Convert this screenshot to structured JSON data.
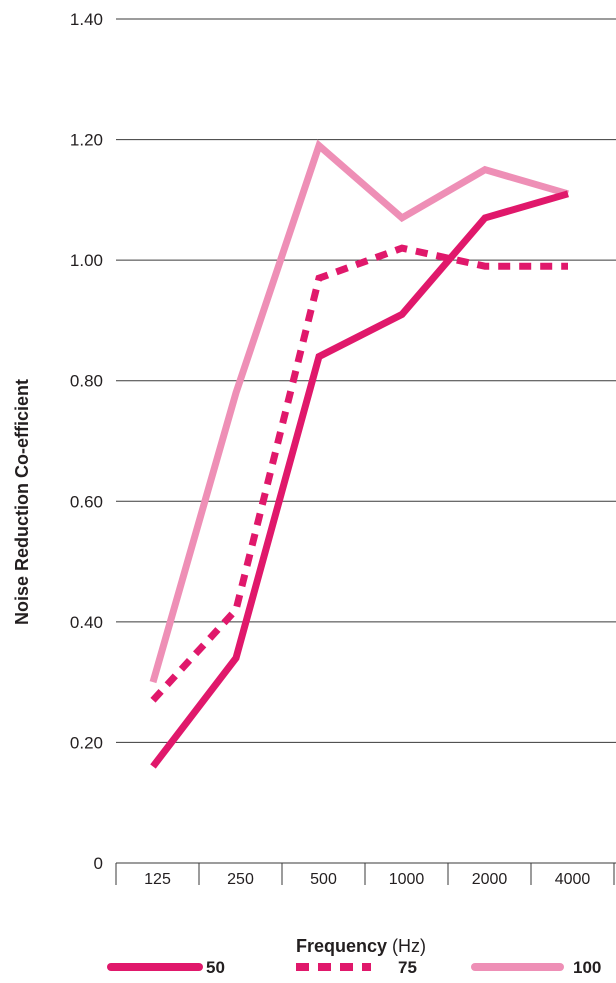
{
  "chart_data": {
    "type": "line",
    "xlabel": "Frequency",
    "xlabel_unit": "(Hz)",
    "ylabel": "Noise Reduction Co-efficient",
    "ylim": [
      0,
      1.4
    ],
    "yticks": [
      "0",
      "0.20",
      "0.40",
      "0.60",
      "0.80",
      "1.00",
      "1.20",
      "1.40"
    ],
    "categories": [
      "125",
      "250",
      "500",
      "1000",
      "2000",
      "4000"
    ],
    "grid": "horizontal",
    "legend_position": "bottom",
    "series": [
      {
        "name": "50",
        "style": "solid",
        "color": "#e0186b",
        "values": [
          0.16,
          0.34,
          0.84,
          0.91,
          1.07,
          1.11
        ]
      },
      {
        "name": "75",
        "style": "dashed",
        "color": "#e0186b",
        "values": [
          0.27,
          0.42,
          0.97,
          1.02,
          0.99,
          0.99
        ]
      },
      {
        "name": "100",
        "style": "solid",
        "color": "#ee8fb6",
        "values": [
          0.3,
          0.78,
          1.19,
          1.07,
          1.15,
          1.11
        ]
      }
    ]
  }
}
